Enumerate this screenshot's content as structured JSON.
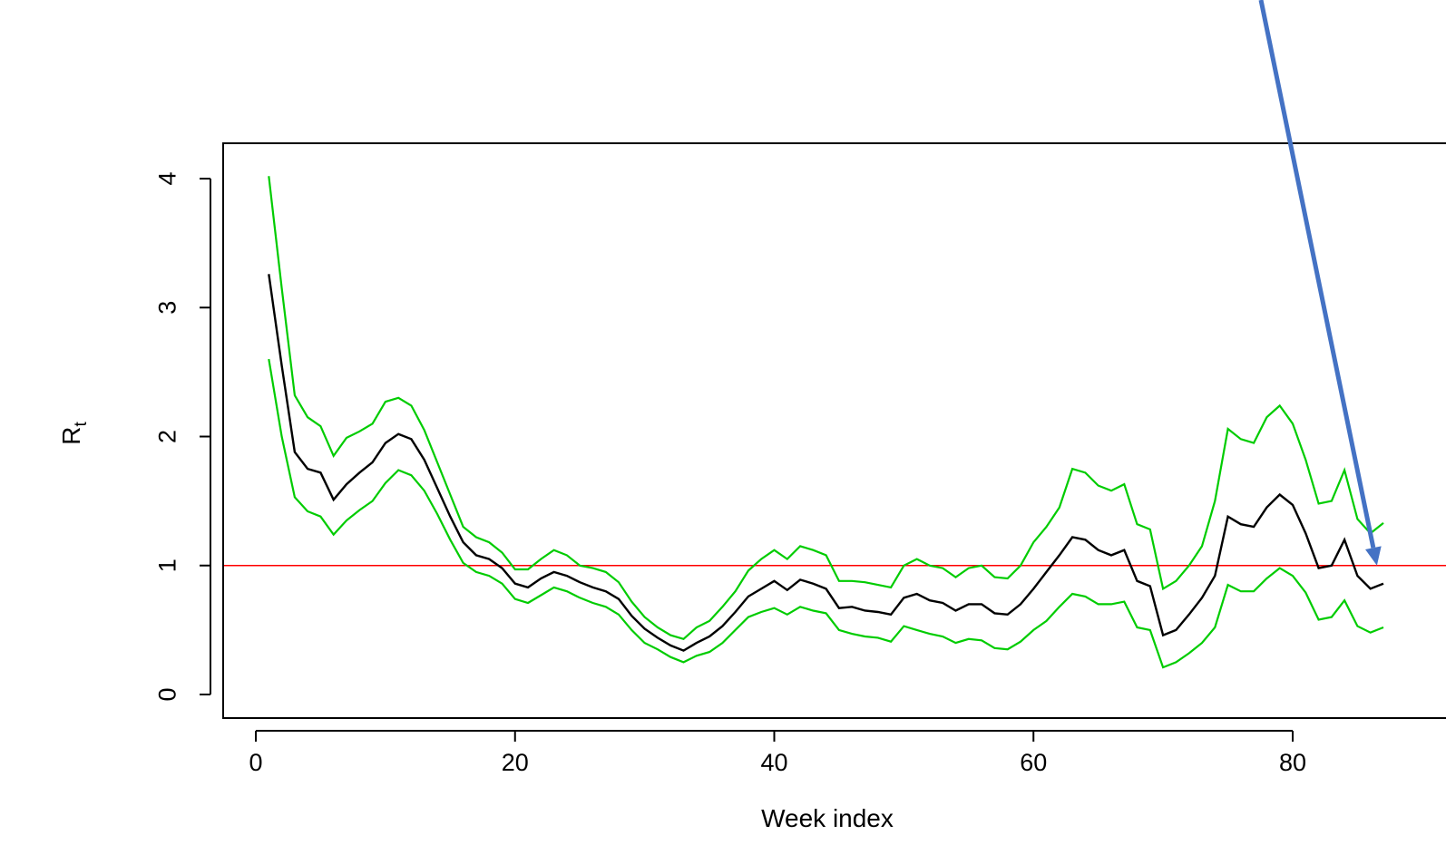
{
  "chart_data": {
    "type": "line",
    "xlabel": "Week index",
    "ylabel": "R",
    "ylabel_subscript": "t",
    "xlim": [
      -1.5,
      89
    ],
    "ylim": [
      -0.18,
      4.28
    ],
    "xticks": [
      0,
      20,
      40,
      60,
      80
    ],
    "yticks": [
      0,
      1,
      2,
      3,
      4
    ],
    "grid": false,
    "colors": {
      "estimate": "#000000",
      "bounds": "#00cc00",
      "reference": "#ff0000",
      "arrow": "#4472c4"
    },
    "reference_line": {
      "y": 1
    },
    "annotation": {
      "type": "arrow",
      "points_to": {
        "x": 86.5,
        "y": 1.0
      }
    },
    "x": [
      1,
      2,
      3,
      4,
      5,
      6,
      7,
      8,
      9,
      10,
      11,
      12,
      13,
      14,
      15,
      16,
      17,
      18,
      19,
      20,
      21,
      22,
      23,
      24,
      25,
      26,
      27,
      28,
      29,
      30,
      31,
      32,
      33,
      34,
      35,
      36,
      37,
      38,
      39,
      40,
      41,
      42,
      43,
      44,
      45,
      46,
      47,
      48,
      49,
      50,
      51,
      52,
      53,
      54,
      55,
      56,
      57,
      58,
      59,
      60,
      61,
      62,
      63,
      64,
      65,
      66,
      67,
      68,
      69,
      70,
      71,
      72,
      73,
      74,
      75,
      76,
      77,
      78,
      79,
      80,
      81,
      82,
      83,
      84,
      85,
      86,
      87
    ],
    "series": [
      {
        "key": "upper",
        "values": [
          4.02,
          3.15,
          2.32,
          2.15,
          2.08,
          1.85,
          1.99,
          2.04,
          2.1,
          2.27,
          2.3,
          2.24,
          2.05,
          1.8,
          1.55,
          1.3,
          1.22,
          1.18,
          1.1,
          0.97,
          0.97,
          1.05,
          1.12,
          1.08,
          1.0,
          0.98,
          0.95,
          0.87,
          0.72,
          0.6,
          0.52,
          0.46,
          0.43,
          0.52,
          0.57,
          0.68,
          0.8,
          0.96,
          1.05,
          1.12,
          1.05,
          1.15,
          1.12,
          1.08,
          0.88,
          0.88,
          0.87,
          0.85,
          0.83,
          1.0,
          1.05,
          1.0,
          0.98,
          0.91,
          0.98,
          1.0,
          0.91,
          0.9,
          1.0,
          1.18,
          1.3,
          1.45,
          1.75,
          1.72,
          1.62,
          1.58,
          1.63,
          1.32,
          1.28,
          0.82,
          0.88,
          1.0,
          1.15,
          1.5,
          2.06,
          1.98,
          1.95,
          2.15,
          2.24,
          2.1,
          1.82,
          1.48,
          1.5,
          1.74,
          1.36,
          1.25,
          1.33
        ]
      },
      {
        "key": "estimate",
        "values": [
          3.26,
          2.55,
          1.88,
          1.75,
          1.72,
          1.51,
          1.63,
          1.72,
          1.8,
          1.95,
          2.02,
          1.98,
          1.82,
          1.6,
          1.38,
          1.18,
          1.08,
          1.05,
          0.98,
          0.86,
          0.83,
          0.9,
          0.95,
          0.92,
          0.87,
          0.83,
          0.8,
          0.74,
          0.61,
          0.51,
          0.44,
          0.38,
          0.34,
          0.4,
          0.45,
          0.53,
          0.64,
          0.76,
          0.82,
          0.88,
          0.81,
          0.89,
          0.86,
          0.82,
          0.67,
          0.68,
          0.65,
          0.64,
          0.62,
          0.75,
          0.78,
          0.73,
          0.71,
          0.65,
          0.7,
          0.7,
          0.63,
          0.62,
          0.7,
          0.82,
          0.95,
          1.08,
          1.22,
          1.2,
          1.12,
          1.08,
          1.12,
          0.88,
          0.84,
          0.46,
          0.5,
          0.62,
          0.75,
          0.92,
          1.38,
          1.32,
          1.3,
          1.45,
          1.55,
          1.47,
          1.25,
          0.98,
          1.0,
          1.2,
          0.92,
          0.82,
          0.86
        ]
      },
      {
        "key": "lower",
        "values": [
          2.6,
          2.0,
          1.53,
          1.42,
          1.38,
          1.24,
          1.35,
          1.43,
          1.5,
          1.64,
          1.74,
          1.7,
          1.58,
          1.4,
          1.2,
          1.02,
          0.95,
          0.92,
          0.86,
          0.74,
          0.71,
          0.77,
          0.83,
          0.8,
          0.75,
          0.71,
          0.68,
          0.62,
          0.5,
          0.4,
          0.35,
          0.29,
          0.25,
          0.3,
          0.33,
          0.4,
          0.5,
          0.6,
          0.64,
          0.67,
          0.62,
          0.68,
          0.65,
          0.63,
          0.5,
          0.47,
          0.45,
          0.44,
          0.41,
          0.53,
          0.5,
          0.47,
          0.45,
          0.4,
          0.43,
          0.42,
          0.36,
          0.35,
          0.41,
          0.5,
          0.57,
          0.68,
          0.78,
          0.76,
          0.7,
          0.7,
          0.72,
          0.52,
          0.5,
          0.21,
          0.25,
          0.32,
          0.4,
          0.52,
          0.85,
          0.8,
          0.8,
          0.9,
          0.98,
          0.92,
          0.79,
          0.58,
          0.6,
          0.73,
          0.53,
          0.48,
          0.52
        ]
      }
    ]
  }
}
